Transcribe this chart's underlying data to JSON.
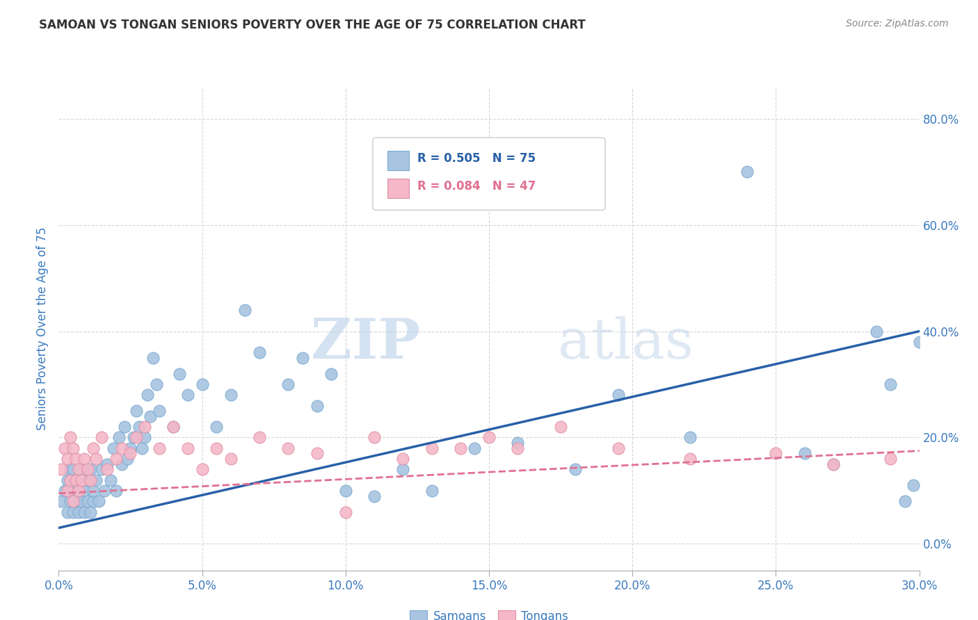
{
  "title": "SAMOAN VS TONGAN SENIORS POVERTY OVER THE AGE OF 75 CORRELATION CHART",
  "source": "Source: ZipAtlas.com",
  "ylabel": "Seniors Poverty Over the Age of 75",
  "xlim": [
    0.0,
    0.3
  ],
  "ylim": [
    -0.05,
    0.86
  ],
  "samoans_R": "0.505",
  "samoans_N": "75",
  "tongans_R": "0.084",
  "tongans_N": "47",
  "samoan_color": "#a8c4e0",
  "tongan_color": "#f4b8c8",
  "samoan_line_color": "#2860a8",
  "tongan_line_color": "#e07090",
  "watermark_zip": "ZIP",
  "watermark_atlas": "atlas",
  "background_color": "#ffffff",
  "grid_color": "#cccccc",
  "title_color": "#333333",
  "axis_label_color": "#3a7abf",
  "samoans_scatter_x": [
    0.001,
    0.002,
    0.003,
    0.003,
    0.004,
    0.004,
    0.005,
    0.005,
    0.005,
    0.006,
    0.006,
    0.007,
    0.007,
    0.008,
    0.008,
    0.009,
    0.009,
    0.01,
    0.01,
    0.011,
    0.011,
    0.012,
    0.012,
    0.013,
    0.014,
    0.015,
    0.016,
    0.017,
    0.018,
    0.019,
    0.02,
    0.021,
    0.022,
    0.023,
    0.024,
    0.025,
    0.026,
    0.027,
    0.028,
    0.029,
    0.03,
    0.031,
    0.032,
    0.033,
    0.034,
    0.035,
    0.04,
    0.042,
    0.045,
    0.05,
    0.055,
    0.06,
    0.065,
    0.07,
    0.08,
    0.085,
    0.09,
    0.095,
    0.1,
    0.11,
    0.12,
    0.13,
    0.145,
    0.16,
    0.18,
    0.195,
    0.22,
    0.24,
    0.26,
    0.27,
    0.285,
    0.29,
    0.295,
    0.298,
    0.3
  ],
  "samoans_scatter_y": [
    0.08,
    0.1,
    0.06,
    0.12,
    0.08,
    0.14,
    0.06,
    0.1,
    0.14,
    0.08,
    0.12,
    0.06,
    0.1,
    0.08,
    0.14,
    0.06,
    0.1,
    0.08,
    0.12,
    0.06,
    0.14,
    0.08,
    0.1,
    0.12,
    0.08,
    0.14,
    0.1,
    0.15,
    0.12,
    0.18,
    0.1,
    0.2,
    0.15,
    0.22,
    0.16,
    0.18,
    0.2,
    0.25,
    0.22,
    0.18,
    0.2,
    0.28,
    0.24,
    0.35,
    0.3,
    0.25,
    0.22,
    0.32,
    0.28,
    0.3,
    0.22,
    0.28,
    0.44,
    0.36,
    0.3,
    0.35,
    0.26,
    0.32,
    0.1,
    0.09,
    0.14,
    0.1,
    0.18,
    0.19,
    0.14,
    0.28,
    0.2,
    0.7,
    0.17,
    0.15,
    0.4,
    0.3,
    0.08,
    0.11,
    0.38
  ],
  "tongans_scatter_x": [
    0.001,
    0.002,
    0.003,
    0.003,
    0.004,
    0.004,
    0.005,
    0.005,
    0.006,
    0.006,
    0.007,
    0.007,
    0.008,
    0.009,
    0.01,
    0.011,
    0.012,
    0.013,
    0.015,
    0.017,
    0.02,
    0.022,
    0.025,
    0.027,
    0.03,
    0.035,
    0.04,
    0.045,
    0.05,
    0.055,
    0.06,
    0.07,
    0.08,
    0.09,
    0.1,
    0.11,
    0.12,
    0.13,
    0.14,
    0.15,
    0.16,
    0.175,
    0.195,
    0.22,
    0.25,
    0.27,
    0.29
  ],
  "tongans_scatter_y": [
    0.14,
    0.18,
    0.1,
    0.16,
    0.12,
    0.2,
    0.08,
    0.18,
    0.12,
    0.16,
    0.1,
    0.14,
    0.12,
    0.16,
    0.14,
    0.12,
    0.18,
    0.16,
    0.2,
    0.14,
    0.16,
    0.18,
    0.17,
    0.2,
    0.22,
    0.18,
    0.22,
    0.18,
    0.14,
    0.18,
    0.16,
    0.2,
    0.18,
    0.17,
    0.06,
    0.2,
    0.16,
    0.18,
    0.18,
    0.2,
    0.18,
    0.22,
    0.18,
    0.16,
    0.17,
    0.15,
    0.16
  ],
  "samoan_trend_x": [
    0.0,
    0.3
  ],
  "samoan_trend_y": [
    0.03,
    0.4
  ],
  "tongan_trend_x": [
    0.0,
    0.3
  ],
  "tongan_trend_y": [
    0.095,
    0.175
  ]
}
